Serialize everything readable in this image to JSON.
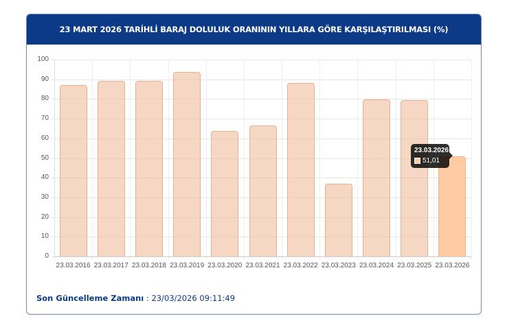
{
  "header": {
    "title": "23 MART 2026 TARİHLİ BARAJ DOLULUK ORANININ YILLARA GÖRE KARŞILAŞTIRILMASI (%)"
  },
  "footer": {
    "label": "Son Güncelleme Zamanı",
    "separator": " : ",
    "value": "23/03/2026 09:11:49"
  },
  "tooltip": {
    "title": "23.03.2026",
    "value": "51,01"
  },
  "colors": {
    "header_bg": "#0d3a86",
    "bar_fill": "#f1c4a8",
    "bar_border": "#eab08d",
    "bar_active": "#ffcba4",
    "footer_text": "#0d3a86"
  },
  "chart_data": {
    "type": "bar",
    "title": "23 MART 2026 TARİHLİ BARAJ DOLULUK ORANININ YILLARA GÖRE KARŞILAŞTIRILMASI (%)",
    "xlabel": "",
    "ylabel": "",
    "ylim": [
      0,
      100
    ],
    "yticks": [
      0,
      10,
      20,
      30,
      40,
      50,
      60,
      70,
      80,
      90,
      100
    ],
    "grid": true,
    "legend": "none",
    "categories": [
      "23.03.2016",
      "23.03.2017",
      "23.03.2018",
      "23.03.2019",
      "23.03.2020",
      "23.03.2021",
      "23.03.2022",
      "23.03.2023",
      "23.03.2024",
      "23.03.2025",
      "23.03.2026"
    ],
    "values": [
      87.0,
      89.2,
      89.2,
      93.6,
      63.8,
      66.5,
      88.3,
      36.8,
      79.8,
      79.3,
      51.01
    ],
    "highlighted_index": 10
  }
}
